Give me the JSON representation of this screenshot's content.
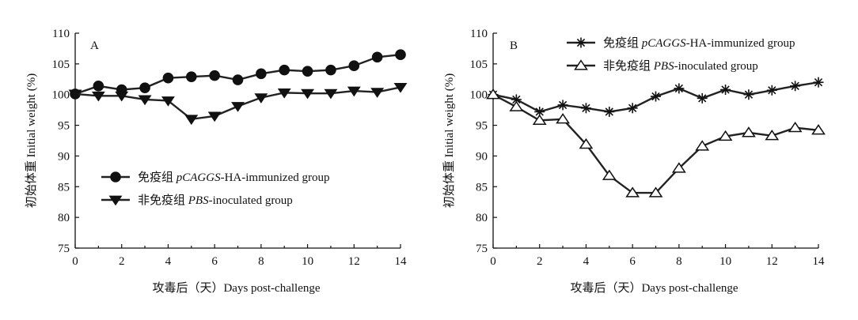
{
  "chart_data": [
    {
      "type": "line",
      "panel_label": "A",
      "ylabel": "初始体重 Initial weight (%)",
      "xlabel": "攻毒后（天）Days post-challenge",
      "xlim": [
        0,
        14
      ],
      "ylim": [
        75,
        110
      ],
      "xticks": [
        0,
        2,
        4,
        6,
        8,
        10,
        12,
        14
      ],
      "yticks": [
        75,
        80,
        85,
        90,
        95,
        100,
        105,
        110
      ],
      "grid": false,
      "legend_position": "center",
      "series": [
        {
          "name_prefix": "免疫组 ",
          "name_italic": "pCAGGS",
          "name_suffix": "-HA-immunized group",
          "marker": "circle",
          "x": [
            0,
            1,
            2,
            3,
            4,
            5,
            6,
            7,
            8,
            9,
            10,
            11,
            12,
            13,
            14
          ],
          "y": [
            100.1,
            101.4,
            100.8,
            101.1,
            102.7,
            102.9,
            103.1,
            102.4,
            103.4,
            104.0,
            103.8,
            104.0,
            104.7,
            106.1,
            106.5
          ]
        },
        {
          "name_prefix": "非免疫组 ",
          "name_italic": "PBS",
          "name_suffix": "-inoculated group",
          "marker": "triangle-down",
          "x": [
            0,
            1,
            2,
            3,
            4,
            5,
            6,
            7,
            8,
            9,
            10,
            11,
            12,
            13,
            14
          ],
          "y": [
            100.1,
            99.8,
            99.8,
            99.2,
            99.0,
            96.0,
            96.5,
            98.1,
            99.5,
            100.3,
            100.2,
            100.2,
            100.6,
            100.4,
            101.2
          ]
        }
      ]
    },
    {
      "type": "line",
      "panel_label": "B",
      "ylabel": "初始体重 Initial weight (%)",
      "xlabel": "攻毒后（天）Days post-challenge",
      "xlim": [
        0,
        14
      ],
      "ylim": [
        75,
        110
      ],
      "xticks": [
        0,
        2,
        4,
        6,
        8,
        10,
        12,
        14
      ],
      "yticks": [
        75,
        80,
        85,
        90,
        95,
        100,
        105,
        110
      ],
      "grid": false,
      "legend_position": "top-right",
      "series": [
        {
          "name_prefix": "免疫组 ",
          "name_italic": "pCAGGS",
          "name_suffix": "-HA-immunized group",
          "marker": "star",
          "x": [
            0,
            1,
            2,
            3,
            4,
            5,
            6,
            7,
            8,
            9,
            10,
            11,
            12,
            13,
            14
          ],
          "y": [
            100.0,
            99.2,
            97.2,
            98.3,
            97.8,
            97.2,
            97.8,
            99.7,
            101.0,
            99.4,
            100.8,
            100.0,
            100.7,
            101.4,
            102.0
          ]
        },
        {
          "name_prefix": "非免疫组 ",
          "name_italic": "PBS",
          "name_suffix": "-inoculated group",
          "marker": "triangle-open",
          "x": [
            0,
            1,
            2,
            3,
            4,
            5,
            6,
            7,
            8,
            9,
            10,
            11,
            12,
            13,
            14
          ],
          "y": [
            100.0,
            98.0,
            95.8,
            96.0,
            91.9,
            86.8,
            84.0,
            84.0,
            88.0,
            91.6,
            93.2,
            93.8,
            93.3,
            94.6,
            94.2
          ]
        }
      ]
    }
  ]
}
